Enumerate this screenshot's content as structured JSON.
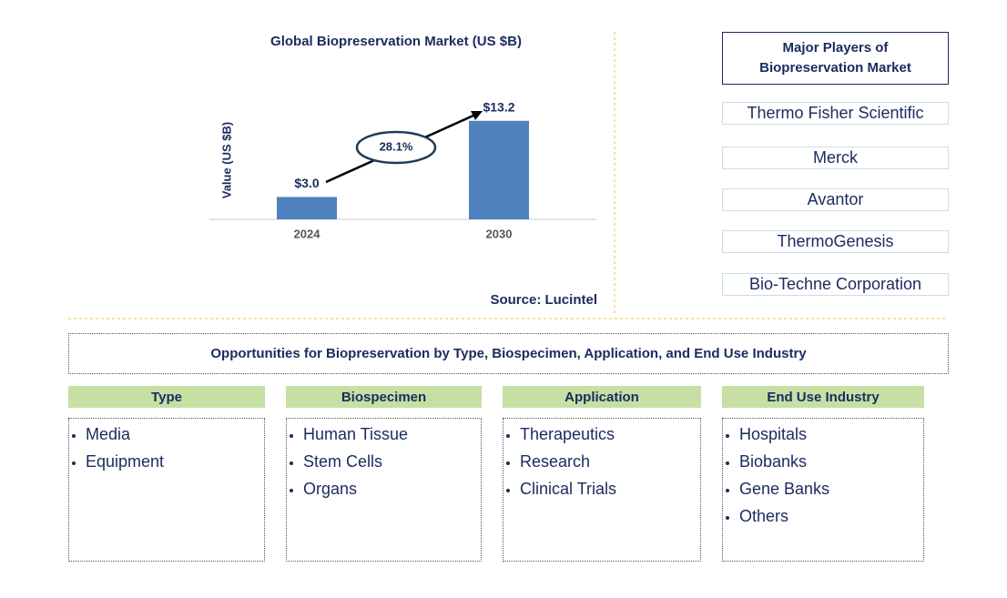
{
  "chart_data": {
    "type": "bar",
    "title": "Global Biopreservation Market (US $B)",
    "y_label": "Value (US $B)",
    "categories": [
      "2024",
      "2030"
    ],
    "values": [
      3.0,
      13.2
    ],
    "value_labels": [
      "$3.0",
      "$13.2"
    ],
    "color": "#4f81bd",
    "growth_label": "28.1%",
    "source": "Source: Lucintel"
  },
  "players": {
    "title": "Major Players of Biopreservation Market",
    "items": [
      "Thermo Fisher Scientific",
      "Merck",
      "Avantor",
      "ThermoGenesis",
      "Bio-Techne Corporation"
    ]
  },
  "opportunities": {
    "title": "Opportunities for Biopreservation by Type, Biospecimen, Application, and End Use Industry",
    "columns": [
      {
        "heading": "Type",
        "items": [
          "Media",
          "Equipment"
        ]
      },
      {
        "heading": "Biospecimen",
        "items": [
          "Human Tissue",
          "Stem Cells",
          "Organs"
        ]
      },
      {
        "heading": "Application",
        "items": [
          "Therapeutics",
          "Research",
          "Clinical Trials"
        ]
      },
      {
        "heading": "End Use Industry",
        "items": [
          "Hospitals",
          "Biobanks",
          "Gene Banks",
          "Others"
        ]
      }
    ]
  }
}
